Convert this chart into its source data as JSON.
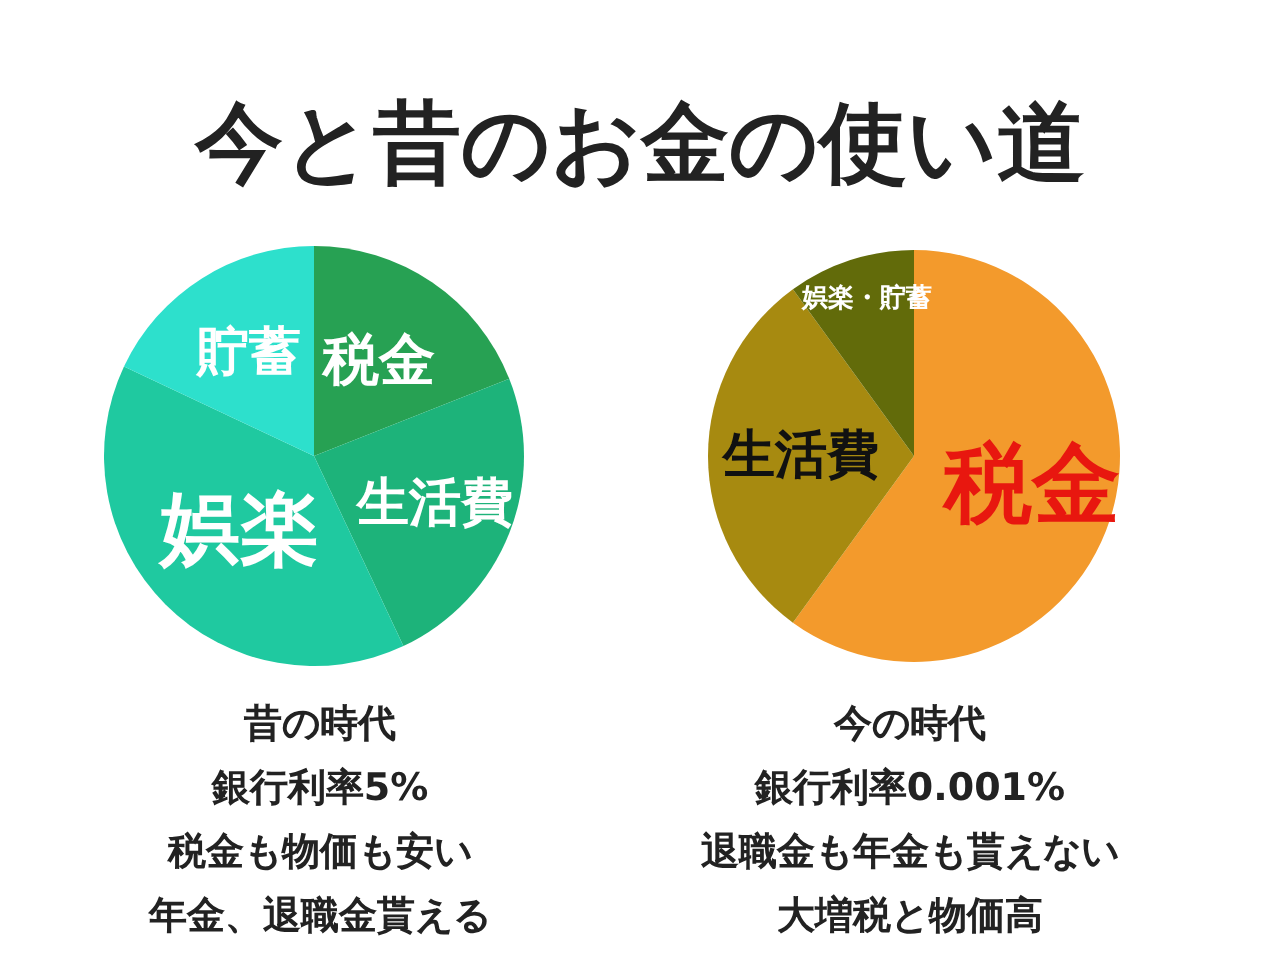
{
  "chart_data": [
    {
      "type": "pie",
      "title": "今と昔のお金の使い道",
      "categories": [
        "税金",
        "生活費",
        "娯楽",
        "貯蓄"
      ],
      "values": [
        19,
        24,
        39,
        18
      ],
      "colors": [
        "#27a153",
        "#1db37a",
        "#1fc9a0",
        "#2de0cc"
      ],
      "annotations": [
        "昔の時代",
        "銀行利率5%",
        "税金も物価も安い",
        "年金、退職金貰える"
      ]
    },
    {
      "type": "pie",
      "categories": [
        "税金",
        "生活費",
        "娯楽・貯蓄"
      ],
      "values": [
        60,
        30,
        10
      ],
      "colors": [
        "#f39a2c",
        "#a78a10",
        "#626b0a"
      ],
      "annotations": [
        "今の時代",
        "銀行利率0.001%",
        "退職金も年金も貰えない",
        "大増税と物価高"
      ]
    }
  ]
}
